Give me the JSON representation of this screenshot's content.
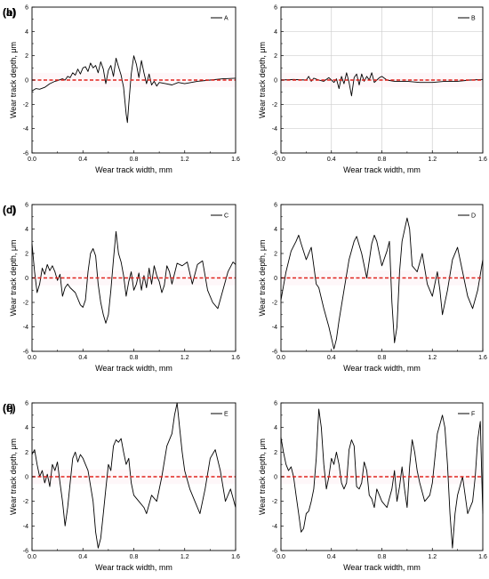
{
  "chart_data": [
    {
      "type": "line",
      "letter": "(a)",
      "title": "",
      "xlabel": "Wear track width, mm",
      "ylabel": "Wear track depth, μm",
      "xlim": [
        0,
        1.6
      ],
      "ylim": [
        -6,
        6
      ],
      "xticks": [
        "0.0",
        "0.4",
        "0.8",
        "1.2",
        "1.6"
      ],
      "yticks": [
        "6",
        "4",
        "2",
        "0",
        "-2",
        "-4",
        "-6"
      ],
      "grid": false,
      "legend_position": "top-right",
      "reference_line_y": 0,
      "series": [
        {
          "name": "A",
          "x": [
            0.0,
            0.03,
            0.06,
            0.1,
            0.14,
            0.18,
            0.2,
            0.24,
            0.26,
            0.28,
            0.3,
            0.32,
            0.34,
            0.36,
            0.38,
            0.4,
            0.42,
            0.44,
            0.46,
            0.48,
            0.5,
            0.52,
            0.54,
            0.56,
            0.58,
            0.6,
            0.62,
            0.64,
            0.66,
            0.68,
            0.7,
            0.72,
            0.74,
            0.75,
            0.76,
            0.78,
            0.8,
            0.82,
            0.84,
            0.86,
            0.88,
            0.9,
            0.92,
            0.94,
            0.96,
            0.98,
            1.0,
            1.05,
            1.1,
            1.15,
            1.2,
            1.3,
            1.4,
            1.5,
            1.6
          ],
          "y": [
            -0.9,
            -0.7,
            -0.75,
            -0.6,
            -0.3,
            -0.1,
            -0.05,
            0.1,
            0.0,
            0.3,
            0.2,
            0.6,
            0.4,
            0.9,
            0.5,
            1.0,
            1.1,
            0.7,
            1.4,
            1.0,
            1.2,
            0.6,
            1.5,
            0.9,
            -0.3,
            0.8,
            1.2,
            0.3,
            1.8,
            1.1,
            0.4,
            -0.6,
            -2.8,
            -3.5,
            -2.0,
            0.5,
            2.0,
            1.3,
            0.2,
            1.6,
            0.6,
            -0.3,
            0.5,
            -0.4,
            -0.1,
            -0.5,
            -0.2,
            -0.3,
            -0.4,
            -0.2,
            -0.3,
            -0.1,
            0.0,
            0.1,
            0.15
          ]
        }
      ]
    },
    {
      "type": "line",
      "letter": "(b)",
      "title": "",
      "xlabel": "Wear track width, mm",
      "ylabel": "Wear track depth, μm",
      "xlim": [
        0,
        1.6
      ],
      "ylim": [
        -6,
        6
      ],
      "xticks": [
        "0.0",
        "0.4",
        "0.8",
        "1.2",
        "1.6"
      ],
      "yticks": [
        "6",
        "4",
        "2",
        "0",
        "-2",
        "-4",
        "-6"
      ],
      "grid": true,
      "legend_position": "top-right",
      "reference_line_y": 0,
      "series": [
        {
          "name": "B",
          "x": [
            0.0,
            0.1,
            0.2,
            0.22,
            0.24,
            0.26,
            0.3,
            0.34,
            0.38,
            0.42,
            0.44,
            0.46,
            0.48,
            0.5,
            0.52,
            0.54,
            0.56,
            0.58,
            0.6,
            0.62,
            0.64,
            0.66,
            0.68,
            0.7,
            0.72,
            0.74,
            0.76,
            0.78,
            0.8,
            0.84,
            0.9,
            1.0,
            1.1,
            1.2,
            1.3,
            1.4,
            1.5,
            1.6
          ],
          "y": [
            0.0,
            0.05,
            0.0,
            0.3,
            -0.1,
            0.15,
            0.0,
            -0.1,
            0.2,
            -0.2,
            0.1,
            -0.7,
            0.3,
            -0.3,
            0.6,
            -0.2,
            -1.3,
            0.2,
            0.5,
            -0.4,
            0.5,
            -0.1,
            0.3,
            0.0,
            0.6,
            -0.2,
            0.0,
            0.2,
            0.3,
            0.0,
            -0.1,
            -0.1,
            -0.2,
            -0.2,
            -0.1,
            -0.1,
            0.0,
            0.05
          ]
        }
      ]
    },
    {
      "type": "line",
      "letter": "(c)",
      "title": "",
      "xlabel": "Wear track width, mm",
      "ylabel": "Wear track depth, μm",
      "xlim": [
        0,
        1.6
      ],
      "ylim": [
        -6,
        6
      ],
      "xticks": [
        "0.0",
        "0.4",
        "0.8",
        "1.2",
        "1.6"
      ],
      "yticks": [
        "6",
        "4",
        "2",
        "0",
        "-2",
        "-4",
        "-6"
      ],
      "grid": false,
      "legend_position": "top-right",
      "reference_line_y": 0,
      "series": [
        {
          "name": "C",
          "x": [
            0.0,
            0.02,
            0.04,
            0.06,
            0.08,
            0.1,
            0.12,
            0.14,
            0.16,
            0.18,
            0.2,
            0.22,
            0.24,
            0.26,
            0.28,
            0.3,
            0.34,
            0.38,
            0.4,
            0.42,
            0.44,
            0.46,
            0.48,
            0.5,
            0.52,
            0.54,
            0.56,
            0.58,
            0.6,
            0.62,
            0.64,
            0.66,
            0.68,
            0.7,
            0.72,
            0.74,
            0.76,
            0.78,
            0.8,
            0.82,
            0.84,
            0.86,
            0.88,
            0.9,
            0.92,
            0.94,
            0.96,
            0.98,
            1.0,
            1.02,
            1.04,
            1.06,
            1.08,
            1.1,
            1.14,
            1.18,
            1.22,
            1.26,
            1.3,
            1.34,
            1.38,
            1.42,
            1.46,
            1.5,
            1.54,
            1.58,
            1.6
          ],
          "y": [
            2.8,
            0.5,
            -1.2,
            -0.5,
            0.8,
            0.3,
            1.1,
            0.6,
            1.0,
            0.5,
            -0.2,
            0.3,
            -1.5,
            -0.8,
            -0.5,
            -0.8,
            -1.2,
            -2.2,
            -2.4,
            -1.8,
            0.5,
            2.0,
            2.4,
            1.8,
            -0.5,
            -2.0,
            -3.0,
            -3.7,
            -3.0,
            -1.0,
            1.5,
            3.8,
            2.0,
            1.3,
            0.2,
            -1.5,
            -0.3,
            0.5,
            -1.0,
            -0.5,
            0.4,
            -1.0,
            0.2,
            -0.8,
            0.8,
            -0.5,
            1.0,
            0.2,
            -0.3,
            -1.2,
            -0.6,
            1.0,
            0.5,
            -0.5,
            1.2,
            1.0,
            1.3,
            -0.5,
            1.1,
            1.4,
            -1.0,
            -2.0,
            -2.5,
            -1.0,
            0.5,
            1.3,
            1.1
          ]
        }
      ]
    },
    {
      "type": "line",
      "letter": "(d)",
      "title": "",
      "xlabel": "Wear track width, mm",
      "ylabel": "Wear track depth, μm",
      "xlim": [
        0,
        1.6
      ],
      "ylim": [
        -6,
        6
      ],
      "xticks": [
        "0.0",
        "0.4",
        "0.8",
        "1.2",
        "1.6"
      ],
      "yticks": [
        "6",
        "4",
        "2",
        "0",
        "-2",
        "-4",
        "-6"
      ],
      "grid": false,
      "legend_position": "top-right",
      "reference_line_y": 0,
      "series": [
        {
          "name": "D",
          "x": [
            0.0,
            0.04,
            0.08,
            0.12,
            0.14,
            0.16,
            0.2,
            0.24,
            0.28,
            0.3,
            0.34,
            0.38,
            0.42,
            0.44,
            0.46,
            0.5,
            0.54,
            0.58,
            0.6,
            0.64,
            0.68,
            0.72,
            0.74,
            0.76,
            0.8,
            0.84,
            0.86,
            0.88,
            0.9,
            0.92,
            0.94,
            0.96,
            1.0,
            1.02,
            1.04,
            1.08,
            1.12,
            1.16,
            1.2,
            1.24,
            1.26,
            1.28,
            1.32,
            1.36,
            1.4,
            1.44,
            1.48,
            1.52,
            1.56,
            1.6
          ],
          "y": [
            -1.8,
            0.5,
            2.2,
            3.0,
            3.5,
            2.8,
            1.5,
            2.5,
            -0.5,
            -0.8,
            -2.5,
            -4.0,
            -5.8,
            -5.0,
            -3.5,
            -1.0,
            1.5,
            3.0,
            3.4,
            2.0,
            0.0,
            2.8,
            3.5,
            3.0,
            1.0,
            2.2,
            3.0,
            -2.0,
            -5.3,
            -4.0,
            0.5,
            3.0,
            4.9,
            4.0,
            1.0,
            0.5,
            2.0,
            -0.5,
            -1.5,
            0.5,
            -1.0,
            -3.0,
            -1.0,
            1.5,
            2.5,
            0.5,
            -1.5,
            -2.5,
            -1.0,
            1.5
          ]
        }
      ]
    },
    {
      "type": "line",
      "letter": "(e)",
      "title": "",
      "xlabel": "Wear track width, mm",
      "ylabel": "Wear track depth, μm",
      "xlim": [
        0,
        1.6
      ],
      "ylim": [
        -6,
        6
      ],
      "xticks": [
        "0.0",
        "0.4",
        "0.8",
        "1.2",
        "1.6"
      ],
      "yticks": [
        "6",
        "4",
        "2",
        "0",
        "-2",
        "-4",
        "-6"
      ],
      "grid": false,
      "legend_position": "top-right",
      "reference_line_y": 0,
      "series": [
        {
          "name": "E",
          "x": [
            0.0,
            0.02,
            0.04,
            0.06,
            0.08,
            0.1,
            0.12,
            0.14,
            0.16,
            0.18,
            0.2,
            0.22,
            0.24,
            0.26,
            0.28,
            0.3,
            0.32,
            0.34,
            0.36,
            0.38,
            0.4,
            0.44,
            0.48,
            0.5,
            0.52,
            0.54,
            0.56,
            0.58,
            0.6,
            0.62,
            0.64,
            0.66,
            0.68,
            0.7,
            0.72,
            0.74,
            0.76,
            0.78,
            0.8,
            0.84,
            0.88,
            0.9,
            0.94,
            0.98,
            1.02,
            1.06,
            1.1,
            1.12,
            1.14,
            1.16,
            1.18,
            1.2,
            1.24,
            1.28,
            1.32,
            1.36,
            1.4,
            1.44,
            1.48,
            1.52,
            1.56,
            1.6
          ],
          "y": [
            1.8,
            2.2,
            1.0,
            0.0,
            0.5,
            -0.5,
            0.2,
            -0.8,
            1.0,
            0.5,
            1.2,
            -0.5,
            -2.0,
            -4.0,
            -2.5,
            -0.5,
            1.5,
            2.0,
            1.2,
            1.8,
            1.5,
            0.5,
            -2.0,
            -4.5,
            -5.8,
            -5.0,
            -3.0,
            -1.0,
            1.0,
            0.5,
            2.5,
            3.0,
            2.8,
            3.1,
            2.0,
            1.0,
            1.5,
            -0.5,
            -1.5,
            -2.0,
            -2.5,
            -3.0,
            -1.5,
            -2.0,
            0.0,
            2.5,
            3.5,
            5.0,
            6.0,
            4.0,
            2.0,
            0.5,
            -1.0,
            -2.0,
            -3.0,
            -1.0,
            1.5,
            2.2,
            0.5,
            -2.0,
            -1.0,
            -2.5
          ]
        }
      ]
    },
    {
      "type": "line",
      "letter": "(f)",
      "title": "",
      "xlabel": "Wear track width, mm",
      "ylabel": "Wear track depth, μm",
      "xlim": [
        0,
        1.6
      ],
      "ylim": [
        -6,
        6
      ],
      "xticks": [
        "0.0",
        "0.4",
        "0.8",
        "1.2",
        "1.6"
      ],
      "yticks": [
        "6",
        "4",
        "2",
        "0",
        "-2",
        "-4",
        "-6"
      ],
      "grid": false,
      "legend_position": "top-right",
      "reference_line_y": 0,
      "series": [
        {
          "name": "F",
          "x": [
            0.0,
            0.02,
            0.04,
            0.06,
            0.08,
            0.1,
            0.12,
            0.14,
            0.16,
            0.18,
            0.2,
            0.22,
            0.24,
            0.26,
            0.28,
            0.3,
            0.32,
            0.34,
            0.36,
            0.38,
            0.4,
            0.42,
            0.44,
            0.46,
            0.48,
            0.5,
            0.52,
            0.54,
            0.56,
            0.58,
            0.6,
            0.62,
            0.64,
            0.66,
            0.68,
            0.7,
            0.72,
            0.74,
            0.76,
            0.8,
            0.84,
            0.88,
            0.9,
            0.92,
            0.94,
            0.96,
            0.98,
            1.0,
            1.02,
            1.04,
            1.06,
            1.08,
            1.1,
            1.14,
            1.18,
            1.2,
            1.24,
            1.28,
            1.3,
            1.32,
            1.34,
            1.36,
            1.38,
            1.4,
            1.44,
            1.48,
            1.52,
            1.54,
            1.56,
            1.58,
            1.6
          ],
          "y": [
            3.2,
            2.0,
            1.0,
            0.5,
            0.8,
            0.0,
            -1.5,
            -3.0,
            -4.5,
            -4.2,
            -3.0,
            -2.8,
            -2.0,
            -1.0,
            1.5,
            5.5,
            4.0,
            1.0,
            -1.0,
            0.0,
            1.5,
            1.0,
            2.0,
            1.0,
            -0.5,
            -1.0,
            -0.5,
            2.2,
            3.0,
            2.5,
            -0.8,
            -1.0,
            -0.5,
            1.2,
            0.5,
            -1.5,
            -1.8,
            -2.5,
            -1.0,
            -2.0,
            -2.5,
            -1.0,
            0.5,
            -2.0,
            -0.8,
            0.8,
            -1.0,
            -2.5,
            0.8,
            3.0,
            2.0,
            0.5,
            -0.5,
            -2.0,
            -1.5,
            -0.5,
            3.5,
            5.0,
            4.0,
            1.0,
            -3.0,
            -5.8,
            -3.0,
            -1.5,
            0.0,
            -3.0,
            -2.0,
            0.0,
            3.0,
            4.5,
            -3.0
          ]
        }
      ]
    }
  ]
}
